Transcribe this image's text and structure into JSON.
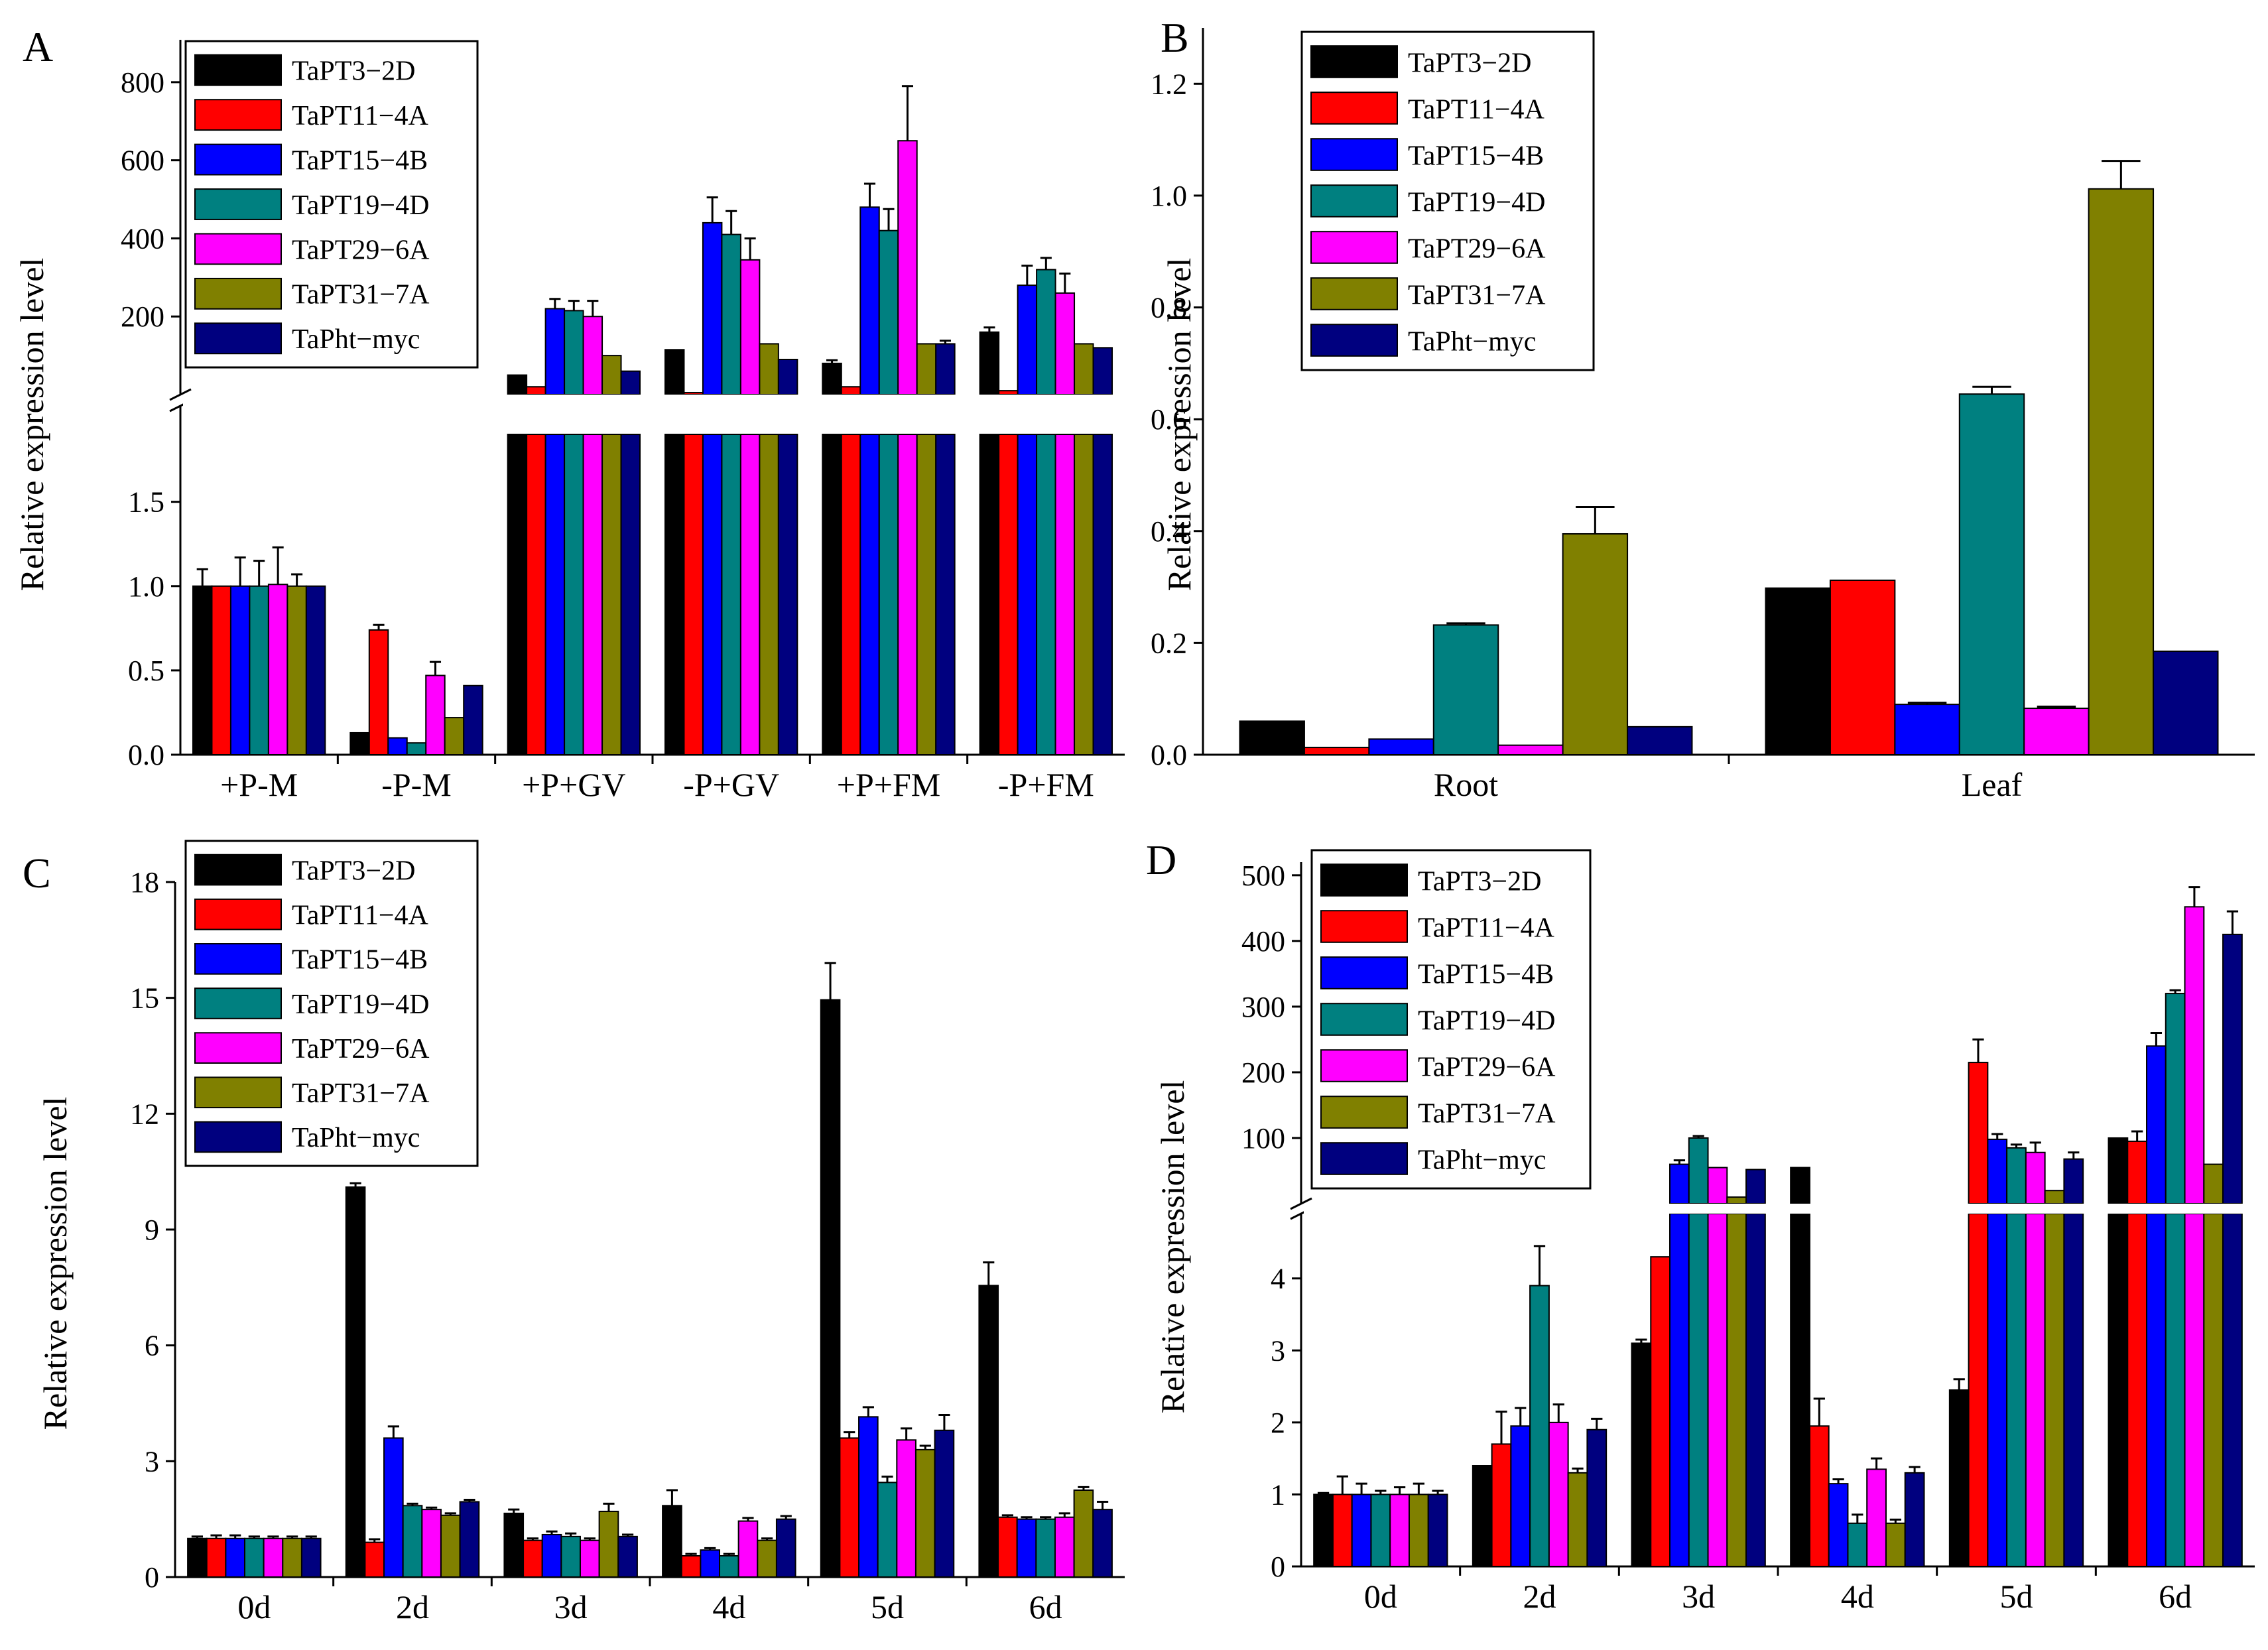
{
  "series_names": [
    "TaPT3−2D",
    "TaPT11−4A",
    "TaPT15−4B",
    "TaPT19−4D",
    "TaPT29−6A",
    "TaPT31−7A",
    "TaPht−myc"
  ],
  "series_colors": [
    "#000000",
    "#ff0000",
    "#0000ff",
    "#008080",
    "#ff00ff",
    "#808000",
    "#00007f"
  ],
  "chart_data": [
    {
      "panel": "A",
      "type": "bar",
      "title": "",
      "ylabel": "Relative expression level",
      "categories": [
        "+P-M",
        "-P-M",
        "+P+GV",
        "-P+GV",
        "+P+FM",
        "-P+FM"
      ],
      "y_axis_break": true,
      "lower_ylim": [
        0,
        1.9
      ],
      "upper_ylim": [
        0,
        900
      ],
      "lower_ticks": [
        "0.0",
        "0.5",
        "1.0",
        "1.5"
      ],
      "upper_ticks": [
        "200",
        "400",
        "600",
        "800"
      ],
      "values": [
        [
          1.0,
          1.0,
          1.0,
          1.0,
          1.01,
          1.0,
          1.0
        ],
        [
          0.13,
          0.74,
          0.1,
          0.07,
          0.47,
          0.22,
          0.41
        ],
        [
          50,
          20,
          220,
          215,
          200,
          100,
          60
        ],
        [
          115,
          5,
          440,
          410,
          345,
          130,
          90
        ],
        [
          80,
          20,
          480,
          420,
          650,
          130,
          130
        ],
        [
          160,
          10,
          280,
          320,
          260,
          130,
          120
        ]
      ],
      "errors": [
        [
          0.1,
          0.0,
          0.17,
          0.15,
          0.22,
          0.07,
          0.0
        ],
        [
          0.0,
          0.03,
          0.0,
          0.0,
          0.08,
          0.0,
          0.0
        ],
        [
          0,
          0,
          25,
          25,
          40,
          0,
          0
        ],
        [
          0,
          0,
          65,
          60,
          55,
          0,
          0
        ],
        [
          8,
          0,
          60,
          55,
          140,
          0,
          8
        ],
        [
          12,
          0,
          50,
          30,
          50,
          0,
          0
        ]
      ],
      "legend": {
        "placement": "top-left"
      }
    },
    {
      "panel": "B",
      "type": "bar",
      "title": "",
      "ylabel": "Relative expression level",
      "categories": [
        "Root",
        "Leaf"
      ],
      "ylim": [
        0,
        1.3
      ],
      "ticks": [
        "0.0",
        "0.2",
        "0.4",
        "0.6",
        "0.8",
        "1.0",
        "1.2"
      ],
      "values": [
        [
          0.06,
          0.013,
          0.028,
          0.232,
          0.017,
          0.395,
          0.05
        ],
        [
          0.298,
          0.312,
          0.09,
          0.645,
          0.083,
          1.012,
          0.185
        ]
      ],
      "errors": [
        [
          0,
          0,
          0,
          0.003,
          0,
          0.048,
          0
        ],
        [
          0,
          0,
          0.003,
          0.013,
          0.003,
          0.05,
          0
        ]
      ],
      "legend": {
        "placement": "top-left"
      }
    },
    {
      "panel": "C",
      "type": "bar",
      "title": "",
      "ylabel": "Relative expression level",
      "categories": [
        "0d",
        "2d",
        "3d",
        "4d",
        "5d",
        "6d"
      ],
      "ylim": [
        0,
        18
      ],
      "ticks": [
        "0",
        "3",
        "6",
        "9",
        "12",
        "15",
        "18"
      ],
      "values": [
        [
          1.0,
          1.0,
          1.0,
          1.0,
          1.0,
          1.0,
          1.0
        ],
        [
          10.1,
          0.9,
          3.6,
          1.85,
          1.75,
          1.6,
          1.95
        ],
        [
          1.65,
          0.95,
          1.1,
          1.05,
          0.95,
          1.7,
          1.05
        ],
        [
          1.85,
          0.55,
          0.7,
          0.55,
          1.45,
          0.95,
          1.5
        ],
        [
          14.95,
          3.6,
          4.15,
          2.45,
          3.55,
          3.3,
          3.8
        ],
        [
          7.55,
          1.55,
          1.5,
          1.5,
          1.55,
          2.25,
          1.75
        ]
      ],
      "errors": [
        [
          0.05,
          0.08,
          0.08,
          0.05,
          0.05,
          0.05,
          0.05
        ],
        [
          0.1,
          0.08,
          0.3,
          0.05,
          0.05,
          0.05,
          0.05
        ],
        [
          0.1,
          0.05,
          0.08,
          0.08,
          0.05,
          0.2,
          0.05
        ],
        [
          0.4,
          0.05,
          0.05,
          0.05,
          0.08,
          0.05,
          0.08
        ],
        [
          0.95,
          0.15,
          0.25,
          0.15,
          0.3,
          0.1,
          0.4
        ],
        [
          0.6,
          0.05,
          0.05,
          0.05,
          0.1,
          0.08,
          0.2
        ]
      ],
      "legend": {
        "placement": "top-left"
      }
    },
    {
      "panel": "D",
      "type": "bar",
      "title": "",
      "ylabel": "Relative expression level",
      "categories": [
        "0d",
        "2d",
        "3d",
        "4d",
        "5d",
        "6d"
      ],
      "y_axis_break": true,
      "lower_ylim": [
        0,
        4.9
      ],
      "upper_ylim": [
        0,
        520
      ],
      "lower_ticks": [
        "0",
        "1",
        "2",
        "3",
        "4"
      ],
      "upper_ticks": [
        "100",
        "200",
        "300",
        "400",
        "500"
      ],
      "values": [
        [
          1.0,
          1.0,
          1.0,
          1.0,
          1.0,
          1.0,
          1.0
        ],
        [
          1.4,
          1.7,
          1.95,
          3.9,
          2.0,
          1.3,
          1.9
        ],
        [
          3.1,
          4.3,
          60,
          100,
          55,
          10,
          52
        ],
        [
          55,
          1.95,
          1.15,
          0.6,
          1.35,
          0.6,
          1.3
        ],
        [
          2.45,
          215,
          98,
          85,
          78,
          20,
          68
        ],
        [
          100,
          95,
          240,
          320,
          452,
          60,
          410
        ]
      ],
      "errors": [
        [
          0.02,
          0.25,
          0.15,
          0.05,
          0.1,
          0.15,
          0.05
        ],
        [
          0,
          0.45,
          0.25,
          0.55,
          0.25,
          0.06,
          0.15
        ],
        [
          0.05,
          0,
          6,
          3,
          0,
          0,
          0
        ],
        [
          0,
          0.38,
          0.06,
          0.12,
          0.15,
          0.05,
          0.08
        ],
        [
          0.15,
          35,
          8,
          5,
          15,
          0,
          10
        ],
        [
          0,
          15,
          20,
          5,
          30,
          0,
          35
        ]
      ],
      "legend": {
        "placement": "top-left"
      }
    }
  ]
}
